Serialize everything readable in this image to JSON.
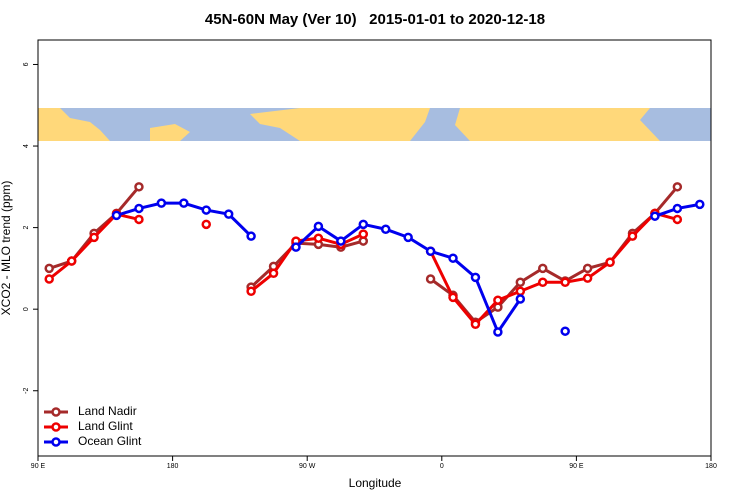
{
  "chart_data": {
    "type": "line",
    "title": "45N-60N May (Ver 10)   2015-01-01 to 2020-12-18",
    "xlabel": "Longitude",
    "ylabel": "XCO2 - MLO trend (ppm)",
    "x": [
      97.5,
      112.5,
      127.5,
      142.5,
      157.5,
      172.5,
      187.5,
      202.5,
      217.5,
      232.5,
      247.5,
      262.5,
      277.5,
      292.5,
      307.5,
      322.5,
      337.5,
      352.5,
      367.5,
      382.5,
      397.5,
      412.5,
      427.5,
      442.5,
      457.5,
      472.5,
      487.5,
      502.5,
      517.5,
      532.5
    ],
    "series": [
      {
        "name": "Land Nadir",
        "color": "#a52a2a",
        "values": [
          1.0,
          1.18,
          1.86,
          2.35,
          3.0,
          null,
          null,
          null,
          null,
          0.54,
          1.05,
          1.62,
          1.59,
          1.52,
          1.67,
          null,
          null,
          0.74,
          0.34,
          -0.32,
          0.05,
          0.66,
          1.0,
          0.69,
          1.0,
          1.15,
          1.86,
          2.35,
          3.0,
          null
        ]
      },
      {
        "name": "Land Glint",
        "color": "#ee0000",
        "values": [
          0.74,
          1.18,
          1.76,
          2.33,
          2.2,
          null,
          null,
          2.08,
          null,
          0.44,
          0.88,
          1.67,
          1.74,
          1.59,
          1.84,
          null,
          null,
          1.42,
          0.29,
          -0.37,
          0.22,
          0.44,
          0.66,
          0.66,
          0.76,
          1.15,
          1.79,
          2.35,
          2.2,
          null
        ]
      },
      {
        "name": "Ocean Glint",
        "color": "#0000ee",
        "values": [
          null,
          null,
          null,
          2.3,
          2.47,
          2.6,
          2.6,
          2.43,
          2.33,
          1.79,
          null,
          1.52,
          2.03,
          1.67,
          2.08,
          1.96,
          1.76,
          1.42,
          1.25,
          0.78,
          -0.56,
          0.25,
          null,
          -0.54,
          null,
          null,
          null,
          2.28,
          2.47,
          2.57
        ]
      }
    ],
    "xlim": [
      90,
      540
    ],
    "ylim": [
      -3.6,
      6.6
    ],
    "xticks": [
      {
        "value": 90,
        "label": "90 E"
      },
      180,
      {
        "value": 270,
        "label": "90 W"
      },
      {
        "value": 360,
        "label": "0"
      },
      {
        "value": 450,
        "label": "90 E"
      },
      {
        "value": 540,
        "label": "180"
      }
    ],
    "yticks": [
      -2,
      0,
      2,
      4,
      6
    ],
    "legend": "bottomleft"
  }
}
